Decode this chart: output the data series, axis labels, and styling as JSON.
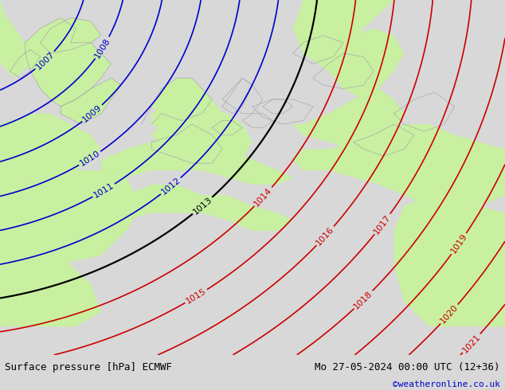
{
  "title_left": "Surface pressure [hPa] ECMWF",
  "title_right": "Mo 27-05-2024 00:00 UTC (12+36)",
  "credit": "©weatheronline.co.uk",
  "bg_color": "#d8d8d8",
  "land_color_green": "#c8f0a0",
  "land_color_gray": "#c8c8c8",
  "isobar_color_blue": "#0000cc",
  "isobar_color_black": "#000000",
  "isobar_color_red": "#cc0000",
  "coast_color": "#aaaaaa",
  "label_fontsize": 8,
  "footer_fontsize": 9,
  "credit_fontsize": 8,
  "credit_color": "#0000cc",
  "footer_bg": "#ffffff"
}
